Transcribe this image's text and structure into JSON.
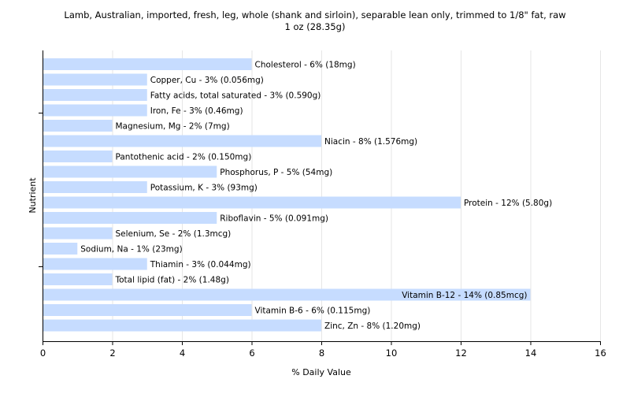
{
  "chart_data": {
    "type": "bar",
    "orientation": "horizontal",
    "title": "Lamb, Australian, imported, fresh, leg, whole (shank and sirloin), separable lean only, trimmed to 1/8\" fat, raw",
    "subtitle": "1 oz (28.35g)",
    "xlabel": "% Daily Value",
    "ylabel": "Nutrient",
    "xlim": [
      0,
      16
    ],
    "xticks": [
      0,
      2,
      4,
      6,
      8,
      10,
      12,
      14,
      16
    ],
    "grid": true,
    "bar_color": "#c6dcff",
    "categories": [
      "Cholesterol",
      "Copper, Cu",
      "Fatty acids, total saturated",
      "Iron, Fe",
      "Magnesium, Mg",
      "Niacin",
      "Pantothenic acid",
      "Phosphorus, P",
      "Potassium, K",
      "Protein",
      "Riboflavin",
      "Selenium, Se",
      "Sodium, Na",
      "Thiamin",
      "Total lipid (fat)",
      "Vitamin B-12",
      "Vitamin B-6",
      "Zinc, Zn"
    ],
    "values": [
      6,
      3,
      3,
      3,
      2,
      8,
      2,
      5,
      3,
      12,
      5,
      2,
      1,
      3,
      2,
      14,
      6,
      8
    ],
    "labels": [
      "Cholesterol - 6% (18mg)",
      "Copper, Cu - 3% (0.056mg)",
      "Fatty acids, total saturated - 3% (0.590g)",
      "Iron, Fe - 3% (0.46mg)",
      "Magnesium, Mg - 2% (7mg)",
      "Niacin - 8% (1.576mg)",
      "Pantothenic acid - 2% (0.150mg)",
      "Phosphorus, P - 5% (54mg)",
      "Potassium, K - 3% (93mg)",
      "Protein - 12% (5.80g)",
      "Riboflavin - 5% (0.091mg)",
      "Selenium, Se - 2% (1.3mcg)",
      "Sodium, Na - 1% (23mg)",
      "Thiamin - 3% (0.044mg)",
      "Total lipid (fat) - 2% (1.48g)",
      "Vitamin B-12 - 14% (0.85mcg)",
      "Vitamin B-6 - 6% (0.115mg)",
      "Zinc, Zn - 8% (1.20mg)"
    ]
  }
}
